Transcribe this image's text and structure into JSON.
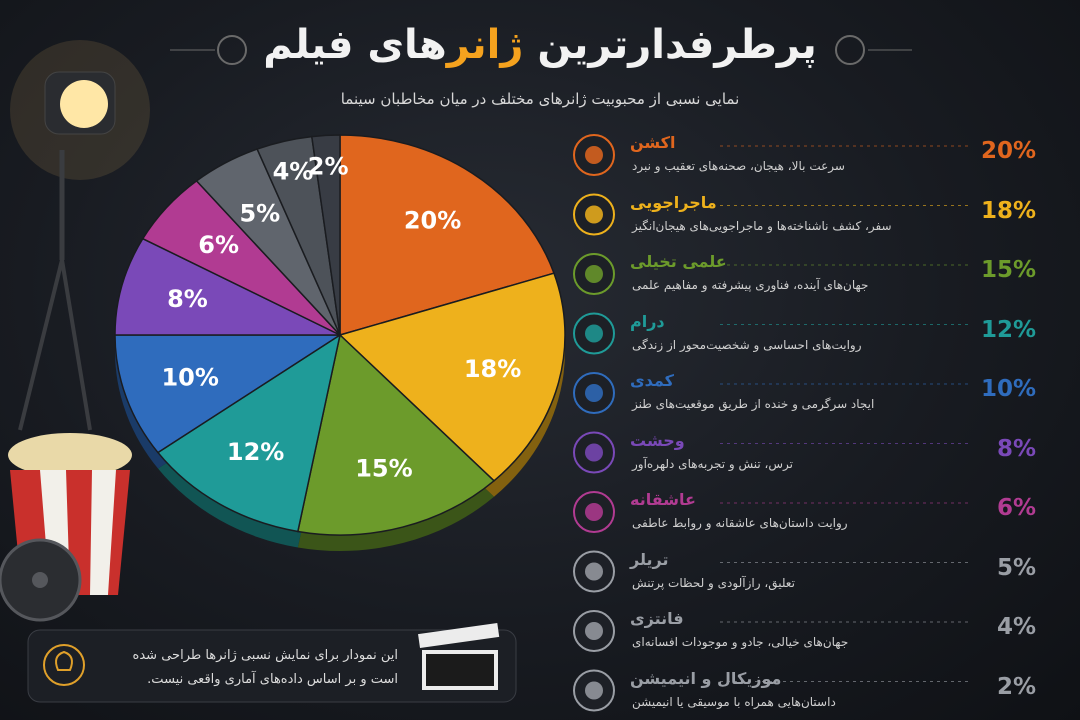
{
  "chart_data": {
    "type": "pie",
    "title_parts": [
      "پرطرفدارترین",
      "ژانر",
      "های فیلم"
    ],
    "subtitle": "نمایی نسبی از محبوبیت ژانرهای مختلف در میان مخاطبان سینما",
    "categories": [
      "اکشن",
      "ماجراجویی",
      "علمی تخیلی",
      "درام",
      "کمدی",
      "وحشت",
      "عاشقانه",
      "تریلر",
      "فانتزی",
      "موزیکال و انیمیشن"
    ],
    "descriptions": [
      "سرعت بالا، هیجان، صحنه‌های تعقیب و نبرد",
      "سفر، کشف ناشناخته‌ها و ماجراجویی‌های هیجان‌انگیز",
      "جهان‌های آینده، فناوری پیشرفته و مفاهیم علمی",
      "روایت‌های احساسی و شخصیت‌محور از زندگی",
      "ایجاد سرگرمی و خنده از طریق موقعیت‌های طنز",
      "ترس، تنش و تجربه‌های دلهره‌آور",
      "روایت داستان‌های عاشقانه و روابط عاطفی",
      "تعلیق، رازآلودی و لحظات پرتنش",
      "جهان‌های خیالی، جادو و موجودات افسانه‌ای",
      "داستان‌هایی همراه با موسیقی یا انیمیشن"
    ],
    "values": [
      20,
      18,
      15,
      12,
      10,
      8,
      6,
      5,
      4,
      2
    ],
    "value_labels": [
      "20%",
      "18%",
      "15%",
      "12%",
      "10%",
      "8%",
      "6%",
      "5%",
      "4%",
      "2%"
    ],
    "colors": [
      "#e0661e",
      "#eeb11c",
      "#6c9b2b",
      "#1f9b98",
      "#2f6cbd",
      "#7a49b8",
      "#b13b92",
      "#60656d",
      "#4d5259",
      "#383c44"
    ],
    "note": "این نمودار برای نمایش نسبی ژانرها طراحی شده است و بر اساس داده‌های آماری واقعی نیست."
  }
}
